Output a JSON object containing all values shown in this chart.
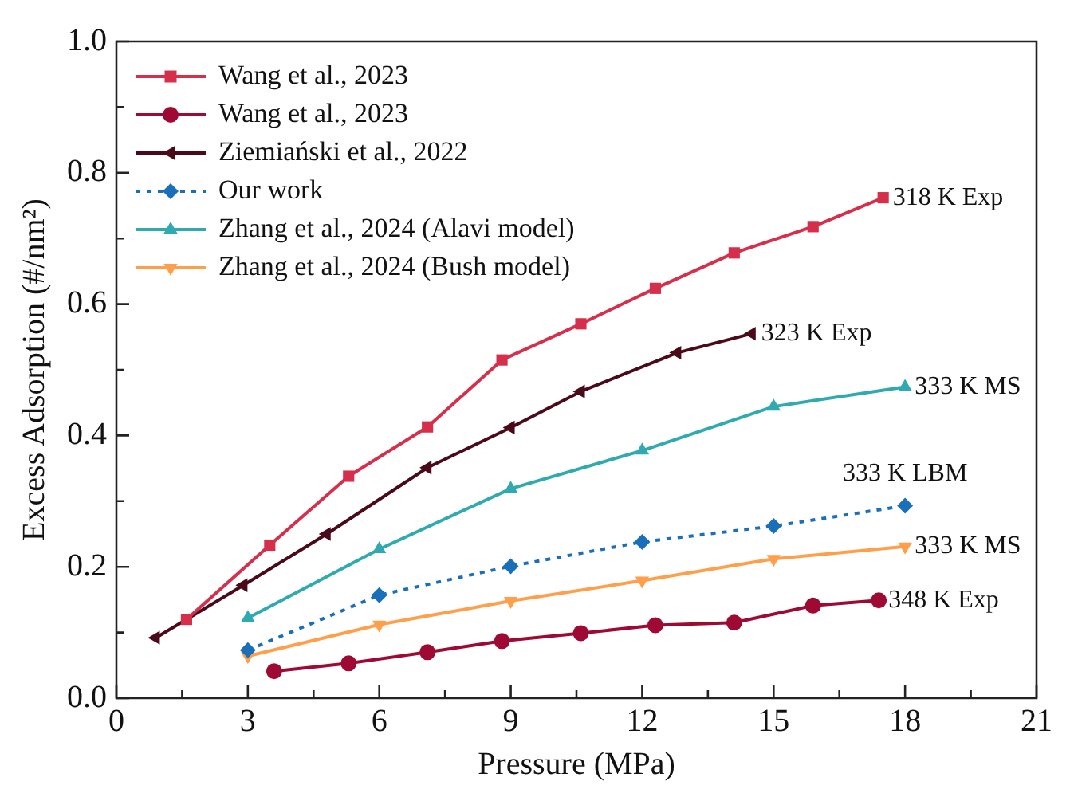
{
  "chart_data": {
    "type": "line",
    "xlabel": "Pressure (MPa)",
    "ylabel": "Excess Adsorption (#/nm²)",
    "xlim": [
      0,
      21
    ],
    "xticks": [
      0,
      {
        "value": 1.5,
        "label": null
      },
      3,
      {
        "value": 4.5,
        "label": null
      },
      6,
      {
        "value": 7.5,
        "label": null
      },
      9,
      {
        "value": 10.5,
        "label": null
      },
      12,
      {
        "value": 13.5,
        "label": null
      },
      15,
      {
        "value": 16.5,
        "label": null
      },
      18,
      {
        "value": 19.5,
        "label": null
      },
      21
    ],
    "ylim": [
      0,
      1
    ],
    "yticks": [
      {
        "value": 0,
        "label": "0.0"
      },
      {
        "value": 0.1,
        "label": null
      },
      0.2,
      {
        "value": 0.3,
        "label": null
      },
      0.4,
      {
        "value": 0.5,
        "label": null
      },
      0.6,
      {
        "value": 0.7,
        "label": null
      },
      0.8,
      {
        "value": 0.9,
        "label": null
      },
      {
        "value": 1,
        "label": "1.0"
      }
    ],
    "grid": false,
    "legend": "top left",
    "series": [
      {
        "name": "Wang et al., 2023",
        "color": "#d62f4b",
        "marker": "square",
        "x": [
          1.6,
          3.5,
          5.3,
          7.1,
          8.8,
          10.6,
          12.3,
          14.1,
          15.9,
          17.5
        ],
        "values": [
          0.12,
          0.233,
          0.338,
          0.413,
          0.515,
          0.57,
          0.624,
          0.678,
          0.718,
          0.762
        ]
      },
      {
        "name": "Wang et al., 2023",
        "color": "#9e0a33",
        "marker": "circle",
        "x": [
          3.6,
          5.3,
          7.1,
          8.8,
          10.6,
          12.3,
          14.1,
          15.9,
          17.4
        ],
        "values": [
          0.041,
          0.053,
          0.07,
          0.087,
          0.099,
          0.111,
          0.115,
          0.141,
          0.149
        ]
      },
      {
        "name": "Ziemiański et al., 2022",
        "color": "#4a0a1a",
        "marker": "triangle-left",
        "x": [
          0.9,
          2.9,
          4.8,
          7.1,
          9.0,
          10.6,
          12.8,
          14.5
        ],
        "values": [
          0.092,
          0.172,
          0.25,
          0.351,
          0.412,
          0.467,
          0.526,
          0.555
        ]
      },
      {
        "name": "Our work",
        "color": "#1a6fba",
        "marker": "diamond",
        "line_style": "dotted",
        "x": [
          3,
          6,
          9,
          12,
          15,
          18
        ],
        "values": [
          0.073,
          0.157,
          0.201,
          0.238,
          0.262,
          0.293
        ]
      },
      {
        "name": "Zhang et al., 2024 (Alavi model)",
        "color": "#2eaab0",
        "marker": "triangle",
        "x": [
          3,
          6,
          9,
          12,
          15,
          18
        ],
        "values": [
          0.122,
          0.227,
          0.319,
          0.377,
          0.444,
          0.474
        ]
      },
      {
        "name": "Zhang et al., 2024 (Bush model)",
        "color": "#ff9f4a",
        "marker": "triangle-down",
        "x": [
          3,
          6,
          9,
          12,
          15,
          18
        ],
        "values": [
          0.064,
          0.112,
          0.148,
          0.179,
          0.212,
          0.231
        ]
      }
    ],
    "annotations": [
      {
        "text": "318 K Exp",
        "x": 17.5,
        "y": 0.762
      },
      {
        "text": "323 K Exp",
        "x": 14.5,
        "y": 0.555
      },
      {
        "text": "333 K MS",
        "x": 18,
        "y": 0.474
      },
      {
        "text": "333 K LBM",
        "x": 18,
        "y": 0.293
      },
      {
        "text": "333 K MS",
        "x": 18,
        "y": 0.231
      },
      {
        "text": "348 K Exp",
        "x": 17.4,
        "y": 0.149
      }
    ]
  }
}
